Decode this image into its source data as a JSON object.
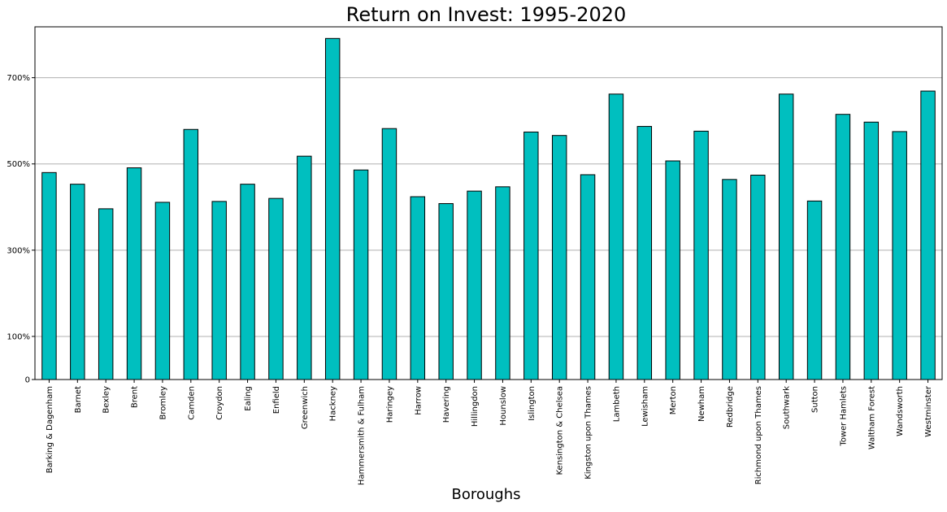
{
  "chart_data": {
    "type": "bar",
    "title": "Return on Invest: 1995-2020",
    "xlabel": "Boroughs",
    "ylabel": "",
    "ylim": [
      0,
      818
    ],
    "yticks": [
      0,
      100,
      300,
      500,
      700
    ],
    "ytick_labels": [
      "0",
      "100%",
      "300%",
      "500%",
      "700%"
    ],
    "grid": "horizontal",
    "bar_color": "#00bfbf",
    "edge_color": "#000000",
    "categories": [
      "Barking & Dagenham",
      "Barnet",
      "Bexley",
      "Brent",
      "Bromley",
      "Camden",
      "Croydon",
      "Ealing",
      "Enfield",
      "Greenwich",
      "Hackney",
      "Hammersmith & Fulham",
      "Haringey",
      "Harrow",
      "Havering",
      "Hillingdon",
      "Hounslow",
      "Islington",
      "Kensington & Chelsea",
      "Kingston upon Thames",
      "Lambeth",
      "Lewisham",
      "Merton",
      "Newham",
      "Redbridge",
      "Richmond upon Thames",
      "Southwark",
      "Sutton",
      "Tower Hamlets",
      "Waltham Forest",
      "Wandsworth",
      "Westminster"
    ],
    "values": [
      480,
      453,
      396,
      491,
      411,
      580,
      413,
      453,
      420,
      518,
      791,
      486,
      582,
      424,
      408,
      437,
      447,
      574,
      566,
      475,
      662,
      587,
      507,
      576,
      464,
      474,
      662,
      414,
      615,
      597,
      575,
      669
    ]
  }
}
